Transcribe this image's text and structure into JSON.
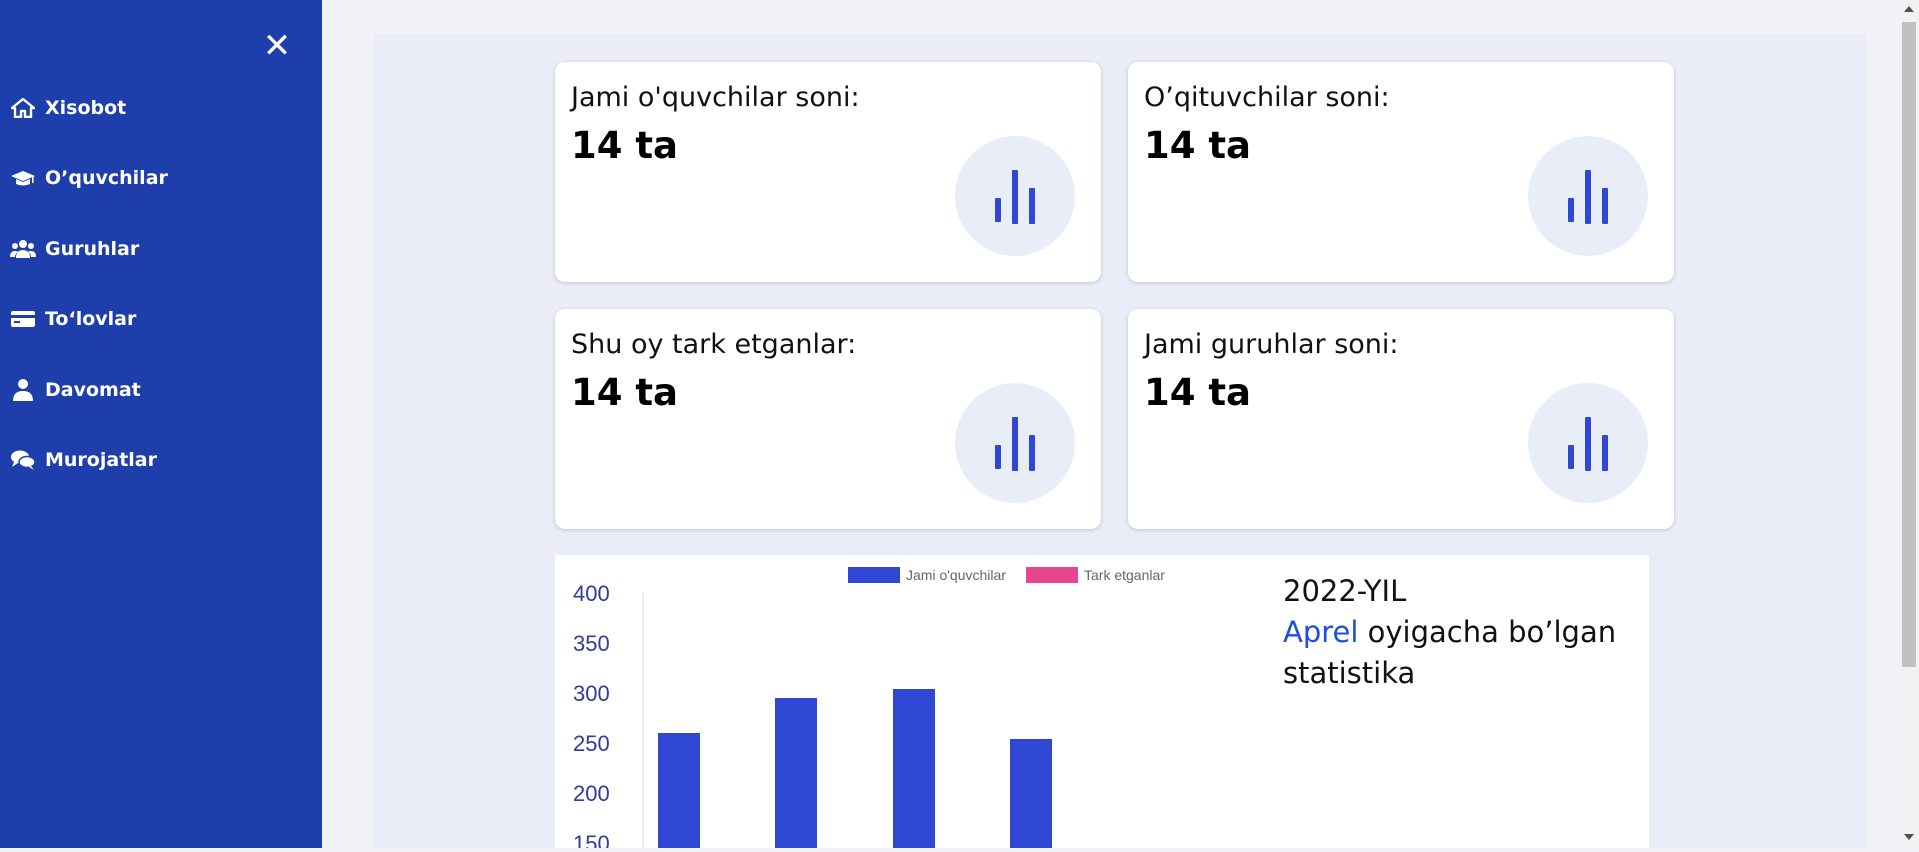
{
  "sidebar": {
    "close_icon": "close-icon",
    "items": [
      {
        "label": "Xisobot",
        "icon": "home-icon"
      },
      {
        "label": "O’quvchilar",
        "icon": "graduation-cap-icon"
      },
      {
        "label": "Guruhlar",
        "icon": "users-icon"
      },
      {
        "label": "To‘lovlar",
        "icon": "credit-card-icon"
      },
      {
        "label": "Davomat",
        "icon": "user-icon"
      },
      {
        "label": "Murojatlar",
        "icon": "comments-icon"
      }
    ]
  },
  "cards": [
    {
      "title": "Jami o'quvchilar soni:",
      "value": "14 ta",
      "icon": "bar-chart-icon"
    },
    {
      "title": "O’qituvchilar soni:",
      "value": "14 ta",
      "icon": "bar-chart-icon"
    },
    {
      "title": "Shu oy tark etganlar:",
      "value": "14 ta",
      "icon": "bar-chart-icon"
    },
    {
      "title": "Jami guruhlar soni:",
      "value": "14 ta",
      "icon": "bar-chart-icon"
    }
  ],
  "stats": {
    "year": "2022-YIL",
    "month": "Aprel",
    "rest": " oyigacha bo’lgan",
    "line3": "statistika"
  },
  "colors": {
    "sidebar": "#1e3eab",
    "accent": "#1e4fd8",
    "series_blue": "#3047d4",
    "series_pink": "#e8458f"
  },
  "chart_data": {
    "type": "bar",
    "series": [
      {
        "name": "Jami o'quvchilar",
        "color": "#3047d4",
        "values": [
          260,
          295,
          304,
          254
        ]
      },
      {
        "name": "Tark etganlar",
        "color": "#e8458f",
        "values": []
      }
    ],
    "yticks": [
      "400",
      "350",
      "300",
      "250",
      "200",
      "150"
    ],
    "ylim": [
      150,
      400
    ],
    "legend": "top"
  }
}
